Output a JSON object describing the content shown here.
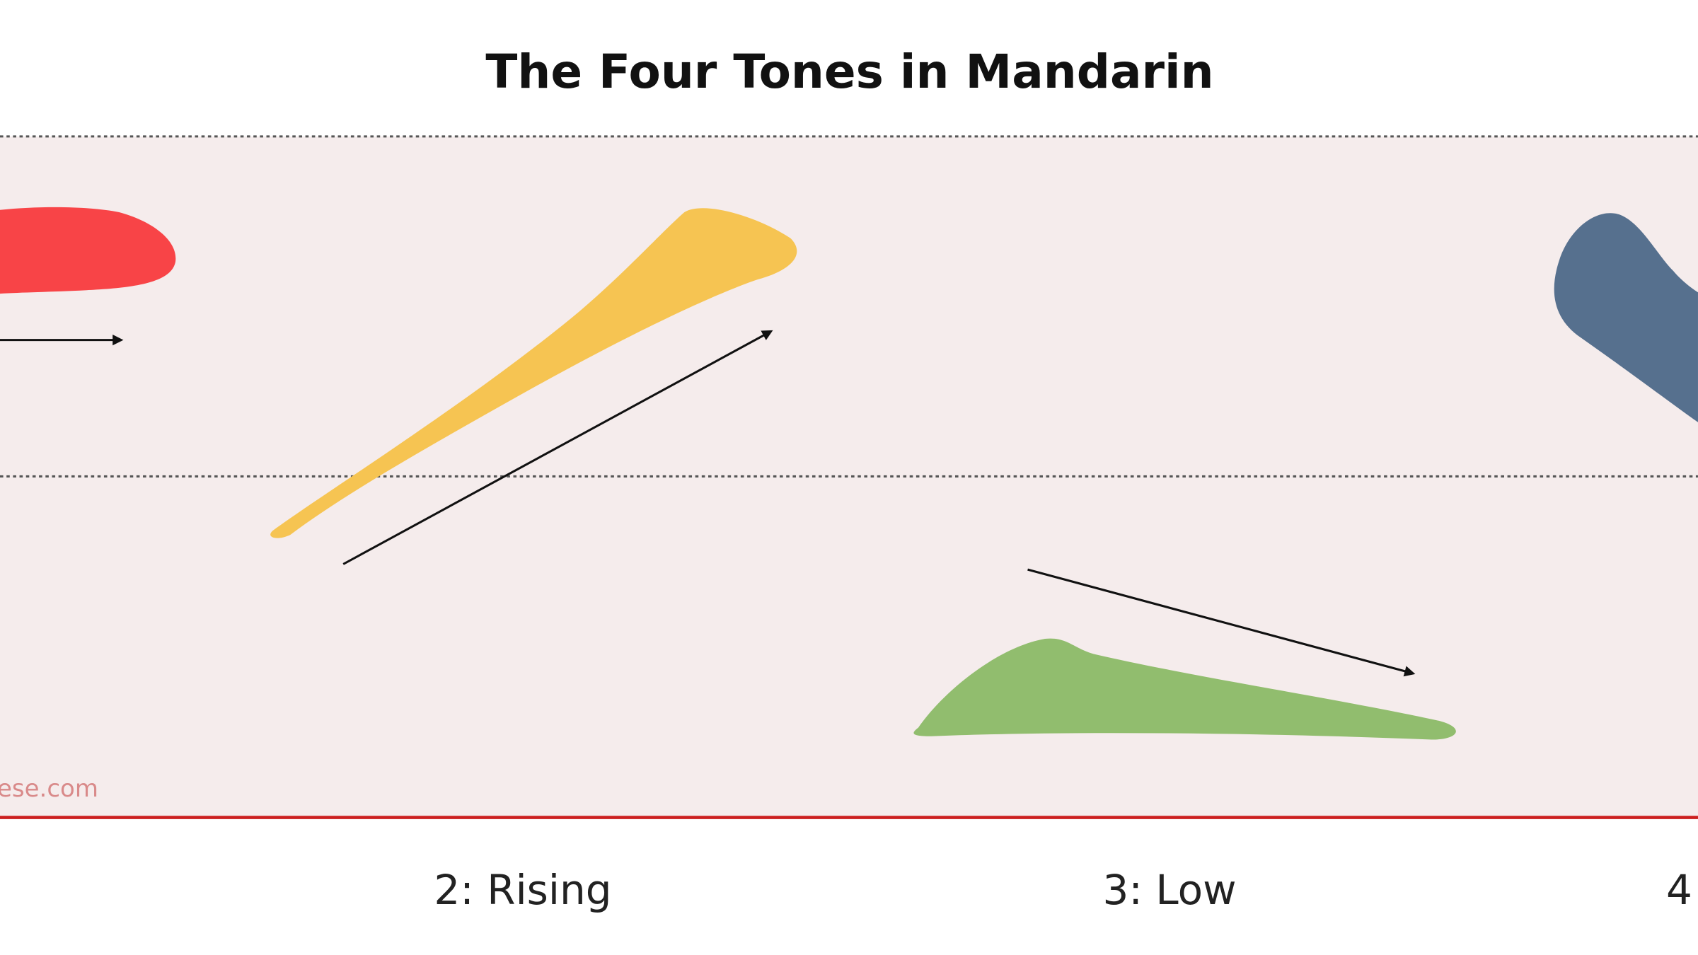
{
  "header": {
    "title": "The Four Tones in Mandarin"
  },
  "watermark": "ese.com",
  "tones": [
    {
      "label": "2: Rising"
    },
    {
      "label": "3: Low"
    },
    {
      "label": "4"
    }
  ]
}
